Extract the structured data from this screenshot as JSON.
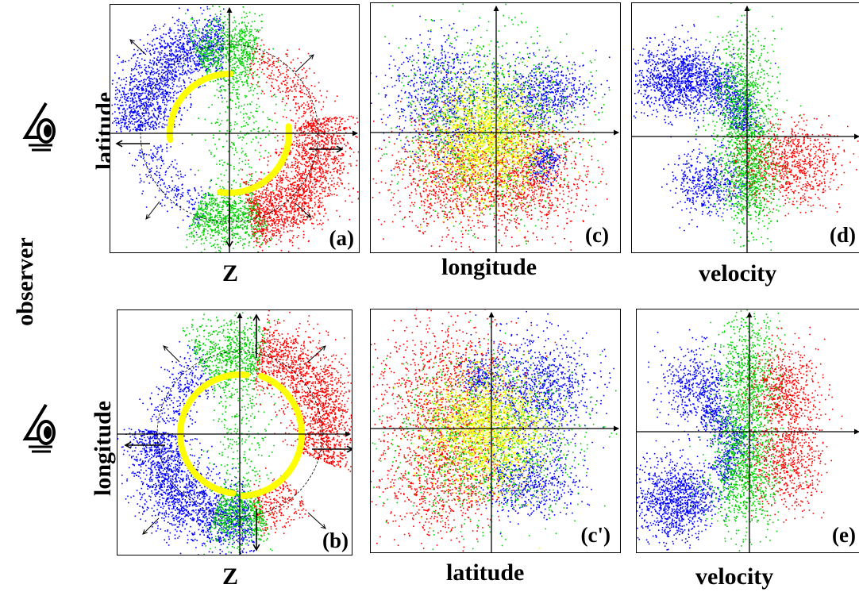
{
  "observer_label": "observer",
  "colors": {
    "blue": "#0000ff",
    "green": "#00d000",
    "red": "#ff0000",
    "yellow": "#ffff00",
    "axis": "#000000"
  },
  "rows": [
    {
      "eye_icon": "observer-eye-icon"
    },
    {
      "eye_icon": "observer-eye-icon"
    }
  ],
  "panels": [
    {
      "id": "a",
      "tag": "(a)",
      "xlabel": "Z",
      "ylabel": "latitude"
    },
    {
      "id": "c",
      "tag": "(c)",
      "xlabel": "longitude",
      "ylabel": ""
    },
    {
      "id": "d",
      "tag": "(d)",
      "xlabel": "velocity",
      "ylabel": ""
    },
    {
      "id": "b",
      "tag": "(b)",
      "xlabel": "Z",
      "ylabel": "longitude"
    },
    {
      "id": "c2",
      "tag": "(c')",
      "xlabel": "latitude",
      "ylabel": ""
    },
    {
      "id": "e",
      "tag": "(e)",
      "xlabel": "velocity",
      "ylabel": ""
    }
  ]
}
